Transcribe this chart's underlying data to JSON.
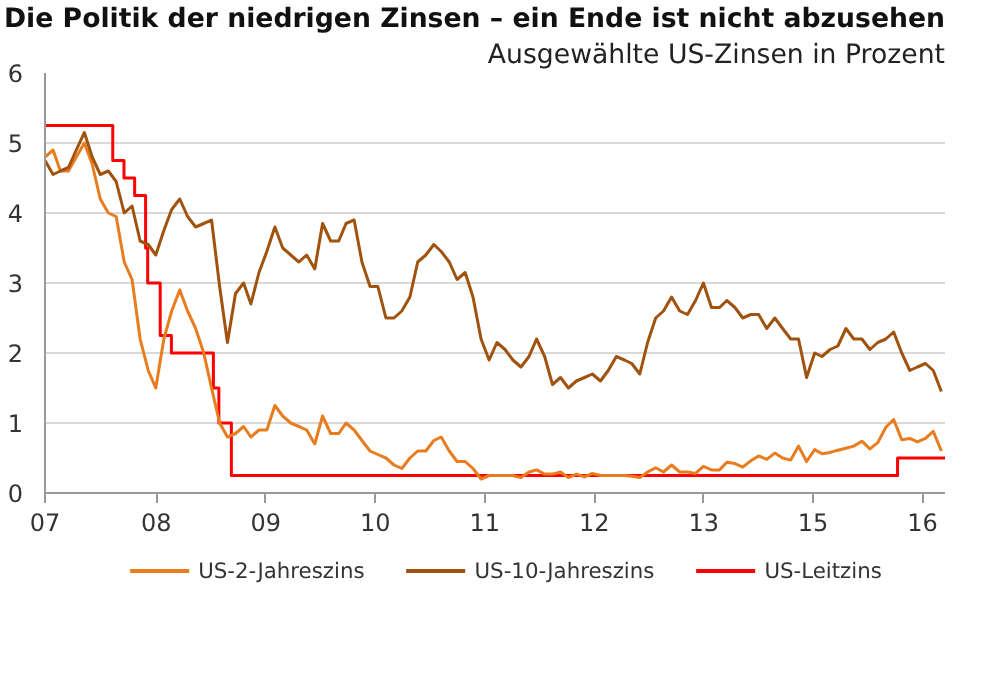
{
  "chart_data": {
    "type": "line",
    "title": "Die Politik der niedrigen Zinsen – ein Ende ist nicht abzusehen",
    "subtitle": "Ausgewählte US-Zinsen in Prozent",
    "xlim": [
      "2007-01-01",
      "2016-06-15"
    ],
    "xticks": [
      {
        "value": "2007-01-01",
        "label": "07"
      },
      {
        "value": "2008-03-03",
        "label": "08"
      },
      {
        "value": "2009-04-27",
        "label": "09"
      },
      {
        "value": "2010-06-21",
        "label": "10"
      },
      {
        "value": "2011-08-15",
        "label": "11"
      },
      {
        "value": "2012-10-08",
        "label": "12"
      },
      {
        "value": "2013-12-02",
        "label": "13"
      },
      {
        "value": "2015-01-26",
        "label": "15"
      },
      {
        "value": "2016-03-21",
        "label": "16"
      }
    ],
    "ylim": [
      0,
      6
    ],
    "yticks": [
      0,
      1,
      2,
      3,
      4,
      5,
      6
    ],
    "grid": "y",
    "legend": "bottom",
    "series": [
      {
        "name": "US-2-Jahreszins",
        "color": "#e87c1e",
        "x": [
          "2007-01",
          "2007-02",
          "2007-03",
          "2007-04",
          "2007-05",
          "2007-06",
          "2007-07",
          "2007-08",
          "2007-09",
          "2007-10",
          "2007-11",
          "2007-12",
          "2008-01",
          "2008-02",
          "2008-03",
          "2008-04",
          "2008-05",
          "2008-06",
          "2008-07",
          "2008-08",
          "2008-09",
          "2008-10",
          "2008-11",
          "2008-12",
          "2009-01",
          "2009-02",
          "2009-03",
          "2009-04",
          "2009-05",
          "2009-06",
          "2009-07",
          "2009-08",
          "2009-09",
          "2009-10",
          "2009-11",
          "2009-12",
          "2010-01",
          "2010-02",
          "2010-03",
          "2010-04",
          "2010-05",
          "2010-06",
          "2010-07",
          "2010-08",
          "2010-09",
          "2010-10",
          "2010-11",
          "2010-12",
          "2011-01",
          "2011-02",
          "2011-03",
          "2011-04",
          "2011-05",
          "2011-06",
          "2011-07",
          "2011-08",
          "2011-09",
          "2011-10",
          "2011-11",
          "2011-12",
          "2012-01",
          "2012-02",
          "2012-03",
          "2012-04",
          "2012-05",
          "2012-06",
          "2012-07",
          "2012-08",
          "2012-09",
          "2012-10",
          "2012-11",
          "2012-12",
          "2013-01",
          "2013-02",
          "2013-03",
          "2013-04",
          "2013-05",
          "2013-06",
          "2013-07",
          "2013-08",
          "2013-09",
          "2013-10",
          "2013-11",
          "2013-12",
          "2014-01",
          "2014-02",
          "2014-03",
          "2014-04",
          "2014-05",
          "2014-06",
          "2014-07",
          "2014-08",
          "2014-09",
          "2014-10",
          "2014-11",
          "2014-12",
          "2015-01",
          "2015-02",
          "2015-03",
          "2015-04",
          "2015-05",
          "2015-06",
          "2015-07",
          "2015-08",
          "2015-09",
          "2015-10",
          "2015-11",
          "2015-12",
          "2016-01",
          "2016-02",
          "2016-03",
          "2016-04",
          "2016-05",
          "2016-06"
        ],
        "values": [
          4.8,
          4.9,
          4.6,
          4.6,
          4.8,
          5.0,
          4.7,
          4.2,
          4.0,
          3.95,
          3.3,
          3.05,
          2.2,
          1.75,
          1.5,
          2.2,
          2.6,
          2.9,
          2.6,
          2.35,
          2.0,
          1.5,
          1.0,
          0.8,
          0.85,
          0.95,
          0.8,
          0.9,
          0.9,
          1.25,
          1.1,
          1.0,
          0.95,
          0.9,
          0.7,
          1.1,
          0.85,
          0.85,
          1.0,
          0.9,
          0.75,
          0.6,
          0.55,
          0.5,
          0.4,
          0.35,
          0.5,
          0.6,
          0.6,
          0.75,
          0.8,
          0.6,
          0.45,
          0.45,
          0.35,
          0.2,
          0.25,
          0.25,
          0.25,
          0.25,
          0.22,
          0.3,
          0.33,
          0.27,
          0.27,
          0.3,
          0.22,
          0.27,
          0.23,
          0.28,
          0.25,
          0.25,
          0.25,
          0.25,
          0.24,
          0.22,
          0.3,
          0.36,
          0.3,
          0.4,
          0.3,
          0.3,
          0.28,
          0.38,
          0.33,
          0.33,
          0.44,
          0.42,
          0.37,
          0.46,
          0.53,
          0.48,
          0.57,
          0.5,
          0.47,
          0.67,
          0.45,
          0.62,
          0.56,
          0.58,
          0.61,
          0.64,
          0.67,
          0.74,
          0.63,
          0.72,
          0.94,
          1.05,
          0.76,
          0.78,
          0.73,
          0.78,
          0.88,
          0.6
        ]
      },
      {
        "name": "US-10-Jahreszins",
        "color": "#a0520f",
        "x": [
          "2007-01",
          "2007-02",
          "2007-03",
          "2007-04",
          "2007-05",
          "2007-06",
          "2007-07",
          "2007-08",
          "2007-09",
          "2007-10",
          "2007-11",
          "2007-12",
          "2008-01",
          "2008-02",
          "2008-03",
          "2008-04",
          "2008-05",
          "2008-06",
          "2008-07",
          "2008-08",
          "2008-09",
          "2008-10",
          "2008-11",
          "2008-12",
          "2009-01",
          "2009-02",
          "2009-03",
          "2009-04",
          "2009-05",
          "2009-06",
          "2009-07",
          "2009-08",
          "2009-09",
          "2009-10",
          "2009-11",
          "2009-12",
          "2010-01",
          "2010-02",
          "2010-03",
          "2010-04",
          "2010-05",
          "2010-06",
          "2010-07",
          "2010-08",
          "2010-09",
          "2010-10",
          "2010-11",
          "2010-12",
          "2011-01",
          "2011-02",
          "2011-03",
          "2011-04",
          "2011-05",
          "2011-06",
          "2011-07",
          "2011-08",
          "2011-09",
          "2011-10",
          "2011-11",
          "2011-12",
          "2012-01",
          "2012-02",
          "2012-03",
          "2012-04",
          "2012-05",
          "2012-06",
          "2012-07",
          "2012-08",
          "2012-09",
          "2012-10",
          "2012-11",
          "2012-12",
          "2013-01",
          "2013-02",
          "2013-03",
          "2013-04",
          "2013-05",
          "2013-06",
          "2013-07",
          "2013-08",
          "2013-09",
          "2013-10",
          "2013-11",
          "2013-12",
          "2014-01",
          "2014-02",
          "2014-03",
          "2014-04",
          "2014-05",
          "2014-06",
          "2014-07",
          "2014-08",
          "2014-09",
          "2014-10",
          "2014-11",
          "2014-12",
          "2015-01",
          "2015-02",
          "2015-03",
          "2015-04",
          "2015-05",
          "2015-06",
          "2015-07",
          "2015-08",
          "2015-09",
          "2015-10",
          "2015-11",
          "2015-12",
          "2016-01",
          "2016-02",
          "2016-03",
          "2016-04",
          "2016-05",
          "2016-06"
        ],
        "values": [
          4.75,
          4.55,
          4.6,
          4.65,
          4.9,
          5.15,
          4.8,
          4.55,
          4.6,
          4.45,
          4.0,
          4.1,
          3.6,
          3.55,
          3.4,
          3.75,
          4.05,
          4.2,
          3.95,
          3.8,
          3.85,
          3.9,
          2.95,
          2.15,
          2.85,
          3.0,
          2.7,
          3.15,
          3.45,
          3.8,
          3.5,
          3.4,
          3.3,
          3.4,
          3.2,
          3.85,
          3.6,
          3.6,
          3.85,
          3.9,
          3.3,
          2.95,
          2.95,
          2.5,
          2.5,
          2.6,
          2.8,
          3.3,
          3.4,
          3.55,
          3.45,
          3.3,
          3.05,
          3.15,
          2.8,
          2.2,
          1.9,
          2.15,
          2.05,
          1.9,
          1.8,
          1.95,
          2.2,
          1.95,
          1.55,
          1.65,
          1.5,
          1.6,
          1.65,
          1.7,
          1.6,
          1.75,
          1.95,
          1.9,
          1.85,
          1.7,
          2.15,
          2.5,
          2.6,
          2.8,
          2.6,
          2.55,
          2.75,
          3.0,
          2.65,
          2.65,
          2.75,
          2.65,
          2.5,
          2.55,
          2.55,
          2.35,
          2.5,
          2.35,
          2.2,
          2.2,
          1.65,
          2.0,
          1.95,
          2.05,
          2.1,
          2.35,
          2.2,
          2.2,
          2.05,
          2.15,
          2.2,
          2.3,
          2.0,
          1.75,
          1.8,
          1.85,
          1.75,
          1.45
        ]
      },
      {
        "name": "US-Leitzins",
        "color": "#ff0000",
        "type": "step",
        "x": [
          "2007-01-01",
          "2007-09-18",
          "2007-10-31",
          "2007-12-11",
          "2008-01-22",
          "2008-01-30",
          "2008-03-18",
          "2008-04-30",
          "2008-10-08",
          "2008-10-29",
          "2008-12-16",
          "2015-12-16",
          "2016-06-15"
        ],
        "values": [
          5.25,
          4.75,
          4.5,
          4.25,
          3.5,
          3.0,
          2.25,
          2.0,
          1.5,
          1.0,
          0.25,
          0.5,
          0.5
        ]
      }
    ]
  }
}
